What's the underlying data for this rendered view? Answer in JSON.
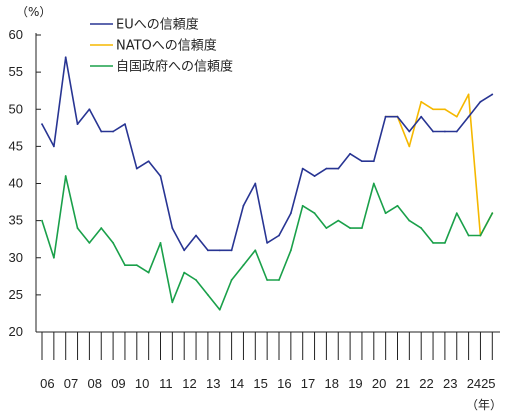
{
  "chart_data": {
    "type": "line",
    "y_unit_label": "（%）",
    "x_unit_label": "（年）",
    "ylim": [
      20,
      60
    ],
    "y_ticks": [
      20,
      25,
      30,
      35,
      40,
      45,
      50,
      55,
      60
    ],
    "grid": false,
    "legend_position": "top-left",
    "year_labels": [
      "06",
      "07",
      "08",
      "09",
      "10",
      "11",
      "12",
      "13",
      "14",
      "15",
      "16",
      "17",
      "18",
      "19",
      "20",
      "21",
      "22",
      "23",
      "24",
      "25"
    ],
    "series": [
      {
        "name": "EUへの信頼度",
        "color": "#283593",
        "start_index": 0,
        "values": [
          48,
          45,
          57,
          48,
          50,
          47,
          47,
          48,
          42,
          43,
          41,
          34,
          31,
          33,
          31,
          31,
          31,
          37,
          40,
          32,
          33,
          36,
          42,
          41,
          42,
          42,
          44,
          43,
          43,
          49,
          49,
          47,
          49,
          47,
          47,
          47,
          49,
          51,
          52
        ]
      },
      {
        "name": "NATOへの信頼度",
        "color": "#f5b800",
        "start_index": 29,
        "values": [
          49,
          49,
          45,
          51,
          50,
          50,
          49,
          52,
          33,
          36
        ]
      },
      {
        "name": "自国政府への信頼度",
        "color": "#1aa04a",
        "start_index": 0,
        "values": [
          35,
          30,
          41,
          34,
          32,
          34,
          32,
          29,
          29,
          28,
          32,
          24,
          28,
          27,
          25,
          23,
          27,
          29,
          31,
          27,
          27,
          31,
          37,
          36,
          34,
          35,
          34,
          34,
          40,
          36,
          37,
          35,
          34,
          32,
          32,
          36,
          33,
          33,
          36
        ]
      }
    ]
  }
}
